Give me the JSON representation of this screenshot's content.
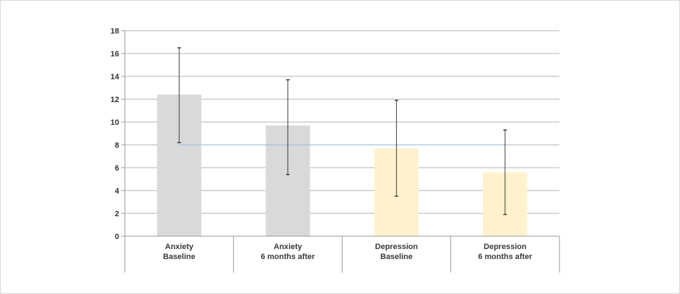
{
  "chart_data": {
    "type": "bar",
    "categories": [
      [
        "Anxiety",
        "Baseline"
      ],
      [
        "Anxiety",
        "6 months after"
      ],
      [
        "Depression",
        "Baseline"
      ],
      [
        "Depression",
        "6 months after"
      ]
    ],
    "values": [
      12.4,
      9.7,
      7.7,
      5.6
    ],
    "error_bars": [
      {
        "low": 8.2,
        "high": 16.5
      },
      {
        "low": 5.4,
        "high": 13.7
      },
      {
        "low": 3.5,
        "high": 11.9
      },
      {
        "low": 1.9,
        "high": 9.3
      }
    ],
    "bar_colors": [
      "#d9d9d9",
      "#d9d9d9",
      "#fff2cc",
      "#fff2cc"
    ],
    "reference_line": {
      "value": 8,
      "color": "#9dc3e6"
    },
    "yticks": [
      "0",
      "2",
      "4",
      "6",
      "8",
      "10",
      "12",
      "14",
      "16",
      "18"
    ],
    "ylim": [
      0,
      18
    ],
    "grid": true,
    "title": "",
    "xlabel": "",
    "ylabel": ""
  }
}
